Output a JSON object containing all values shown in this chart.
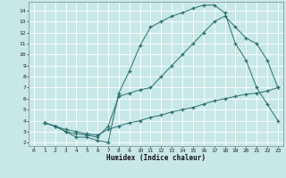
{
  "xlabel": "Humidex (Indice chaleur)",
  "bg_color": "#c8e8e8",
  "grid_color": "#ffffff",
  "line_color": "#2a6e6e",
  "xlim": [
    -0.5,
    23.5
  ],
  "ylim": [
    1.7,
    14.8
  ],
  "xticks": [
    0,
    1,
    2,
    3,
    4,
    5,
    6,
    7,
    8,
    9,
    10,
    11,
    12,
    13,
    14,
    15,
    16,
    17,
    18,
    19,
    20,
    21,
    22,
    23
  ],
  "yticks": [
    2,
    3,
    4,
    5,
    6,
    7,
    8,
    9,
    10,
    11,
    12,
    13,
    14
  ],
  "line1_x": [
    1,
    2,
    3,
    4,
    5,
    6,
    7,
    8,
    9,
    10,
    11,
    12,
    13,
    14,
    15,
    16,
    17,
    18,
    19,
    20,
    21,
    22,
    23
  ],
  "line1_y": [
    3.8,
    3.5,
    3.0,
    2.5,
    2.5,
    2.2,
    2.0,
    6.5,
    8.5,
    10.8,
    12.5,
    13.0,
    13.5,
    13.8,
    14.2,
    14.5,
    14.5,
    13.8,
    11.0,
    9.5,
    7.0,
    5.5,
    4.0
  ],
  "line2_x": [
    1,
    2,
    3,
    4,
    5,
    6,
    7,
    8,
    9,
    10,
    11,
    12,
    13,
    14,
    15,
    16,
    17,
    18,
    19,
    20,
    21,
    22,
    23
  ],
  "line2_y": [
    3.8,
    3.5,
    3.0,
    2.8,
    2.7,
    2.5,
    3.5,
    6.2,
    6.5,
    6.8,
    7.0,
    8.0,
    9.0,
    10.0,
    11.0,
    12.0,
    13.0,
    13.5,
    12.5,
    11.5,
    11.0,
    9.5,
    7.0
  ],
  "line3_x": [
    1,
    2,
    3,
    4,
    5,
    6,
    7,
    8,
    9,
    10,
    11,
    12,
    13,
    14,
    15,
    16,
    17,
    18,
    19,
    20,
    21,
    22,
    23
  ],
  "line3_y": [
    3.8,
    3.5,
    3.2,
    3.0,
    2.8,
    2.7,
    3.2,
    3.5,
    3.8,
    4.0,
    4.3,
    4.5,
    4.8,
    5.0,
    5.2,
    5.5,
    5.8,
    6.0,
    6.2,
    6.4,
    6.5,
    6.7,
    7.0
  ]
}
